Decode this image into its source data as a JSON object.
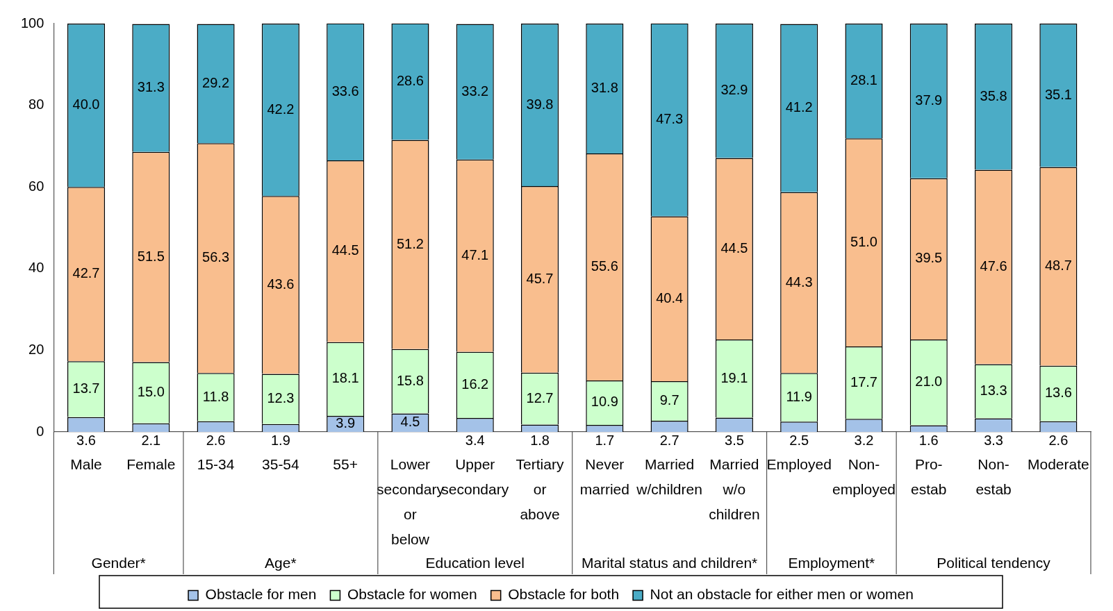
{
  "chart_data": {
    "type": "bar",
    "stacked": true,
    "grid": false,
    "legend": "bottom",
    "categories": [
      "Male",
      "Female",
      "15-34",
      "35-54",
      "55+",
      "Lower secondary or below",
      "Upper secondary",
      "Tertiary or above",
      "Never married",
      "Married w/children",
      "Married w/o children",
      "Employed",
      "Non-employed",
      "Pro-estab",
      "Non-estab",
      "Moderate"
    ],
    "series": [
      {
        "name": "Obstacle for men",
        "color": "#a4c2e8",
        "values": [
          3.6,
          2.1,
          2.6,
          1.9,
          3.9,
          4.5,
          3.4,
          1.8,
          1.7,
          2.7,
          3.5,
          2.5,
          3.2,
          1.6,
          3.3,
          2.6
        ],
        "value_labels": [
          "3.6",
          "2.1",
          "2.6",
          "1.9",
          "3.9",
          "4.5",
          "3.4",
          "1.8",
          "1.7",
          "2.7",
          "3.5",
          "2.5",
          "3.2",
          "1.6",
          "3.3",
          "2.6"
        ]
      },
      {
        "name": "Obstacle for women",
        "color": "#ccffcc",
        "values": [
          13.7,
          15.0,
          11.8,
          12.3,
          18.1,
          15.8,
          16.2,
          12.7,
          10.9,
          9.7,
          19.1,
          11.9,
          17.7,
          21.0,
          13.3,
          13.6
        ],
        "value_labels": [
          "13.7",
          "15.0",
          "11.8",
          "12.3",
          "18.1",
          "15.8",
          "16.2",
          "12.7",
          "10.9",
          "9.7",
          "19.1",
          "11.9",
          "17.7",
          "21.0",
          "13.3",
          "13.6"
        ]
      },
      {
        "name": "Obstacle for both",
        "color": "#f9be8e",
        "values": [
          42.7,
          51.5,
          56.3,
          43.6,
          44.5,
          51.2,
          47.1,
          45.7,
          55.6,
          40.4,
          44.5,
          44.3,
          51.0,
          39.5,
          47.6,
          48.7
        ],
        "value_labels": [
          "42.7",
          "51.5",
          "56.3",
          "43.6",
          "44.5",
          "51.2",
          "47.1",
          "45.7",
          "55.6",
          "40.4",
          "44.5",
          "44.3",
          "51.0",
          "39.5",
          "47.6",
          "48.7"
        ]
      },
      {
        "name": "Not an obstacle for either men or women",
        "color": "#4bacc6",
        "values": [
          40.0,
          31.3,
          29.2,
          42.2,
          33.6,
          28.6,
          33.2,
          39.8,
          31.8,
          47.3,
          32.9,
          41.2,
          28.1,
          37.9,
          35.8,
          35.1
        ],
        "value_labels": [
          "40.0",
          "31.3",
          "29.2",
          "42.2",
          "33.6",
          "28.6",
          "33.2",
          "39.8",
          "31.8",
          "47.3",
          "32.9",
          "41.2",
          "28.1",
          "37.9",
          "35.8",
          "35.1"
        ]
      }
    ],
    "ylim": [
      0,
      100
    ],
    "yticks": [
      0,
      20,
      40,
      60,
      80,
      100
    ],
    "annotations": [
      "Gender*",
      "Age*",
      "Education level",
      "Marital status and children*",
      "Employment*",
      "Political tendency"
    ]
  }
}
